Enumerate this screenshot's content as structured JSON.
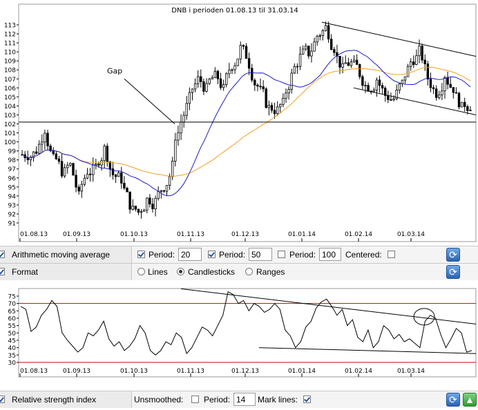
{
  "chart_data": [
    {
      "type": "candlestick",
      "title": "DNB i perioden 01.08.13 til 31.03.14",
      "x_tick_labels": [
        "01.08.13",
        "01.09.13",
        "01.10.13",
        "01.11.13",
        "01.12.13",
        "01.01.14",
        "01.02.14",
        "01.03.14"
      ],
      "y_tick_labels": [
        91,
        92,
        93,
        94,
        95,
        96,
        97,
        98,
        99,
        100,
        101,
        102,
        103,
        104,
        105,
        106,
        107,
        108,
        109,
        110,
        111,
        112,
        113
      ],
      "ylim": [
        90.5,
        113.5
      ],
      "grid": false,
      "ohlc_weekly_close": [
        98.6,
        99.1,
        101.5,
        98.0,
        96.8,
        97.4,
        93.9,
        96.8,
        97.2,
        99.2,
        96.4,
        95.9,
        93.1,
        92.2,
        93.6,
        93.4,
        95.1,
        97.3,
        101.8,
        104.8,
        106.9,
        105.8,
        107.2,
        105.8,
        108.6,
        110.4,
        108.7,
        106.2,
        104.4,
        103.6,
        104.2,
        107.3,
        109.4,
        109.9,
        111.8,
        112.7,
        110.5,
        108.0,
        108.7,
        107.6,
        106.2,
        107.0,
        105.2,
        104.8,
        106.5,
        108.9,
        110.0,
        107.1,
        105.5,
        107.5,
        106.0,
        103.7,
        104.1
      ],
      "support_line": 102.2,
      "series": [
        {
          "name": "20",
          "color": "#1c1cc8"
        },
        {
          "name": "50",
          "color": "#f0a020"
        }
      ],
      "annotations": [
        "Gap"
      ]
    },
    {
      "type": "line",
      "x_tick_labels": [
        "01.08.13",
        "01.09.13",
        "01.10.13",
        "01.11.13",
        "01.12.13",
        "01.01.14",
        "01.02.14",
        "01.03.14"
      ],
      "y_tick_labels": [
        30,
        35,
        40,
        45,
        50,
        55,
        60,
        65,
        70,
        75
      ],
      "ylim": [
        29,
        79
      ],
      "mark_lines": [
        70,
        30
      ],
      "values": [
        68,
        66,
        51,
        54,
        62,
        66,
        72,
        68,
        50,
        45,
        41,
        37,
        40,
        50,
        48,
        52,
        58,
        46,
        41,
        44,
        38,
        41,
        46,
        55,
        50,
        38,
        35,
        38,
        44,
        42,
        50,
        47,
        36,
        40,
        47,
        54,
        52,
        48,
        55,
        62,
        78,
        76,
        70,
        72,
        65,
        70,
        68,
        64,
        66,
        70,
        66,
        52,
        48,
        40,
        44,
        54,
        58,
        67,
        71,
        73,
        68,
        62,
        66,
        55,
        59,
        47,
        44,
        52,
        40,
        44,
        55,
        52,
        46,
        49,
        44,
        46,
        43,
        40,
        58,
        62,
        60,
        49,
        40,
        46,
        53,
        50,
        37,
        38
      ]
    }
  ],
  "panel_main": {
    "indicator_label": "Arithmetic moving average",
    "period_label": "Period:",
    "period1_value": "20",
    "period2_value": "50",
    "period3_value": "100",
    "centered_label": "Centered:",
    "format_label": "Format",
    "format_options": [
      "Lines",
      "Candlesticks",
      "Ranges"
    ],
    "format_selected": "Candlesticks"
  },
  "panel_rsi": {
    "indicator_label": "Relative strength index",
    "unsmoothed_label": "Unsmoothed:",
    "period_label": "Period:",
    "period_value": "14",
    "mark_lines_label": "Mark lines:"
  },
  "colors": {
    "ma20": "#1c1cc8",
    "ma50": "#f0a020",
    "mark_line": "#cc0000"
  }
}
